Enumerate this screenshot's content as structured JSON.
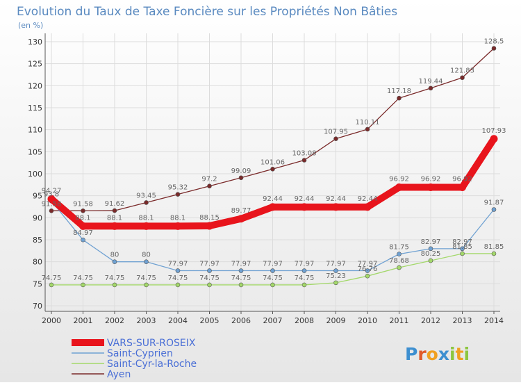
{
  "chart_data": {
    "type": "line",
    "title": "Evolution du Taux de Taxe Foncière sur les Propriétés Non Bâties",
    "ylabel": "(en %)",
    "x": [
      "2000",
      "2001",
      "2002",
      "2003",
      "2004",
      "2005",
      "2006",
      "2007",
      "2008",
      "2009",
      "2010",
      "2011",
      "2012",
      "2013",
      "2014"
    ],
    "y_ticks": [
      "70",
      "75",
      "80",
      "85",
      "90",
      "95",
      "100",
      "105",
      "110",
      "115",
      "120",
      "125",
      "130"
    ],
    "ylim": [
      70,
      130
    ],
    "grid": true,
    "legend_position": "bottom-left",
    "series": [
      {
        "name": "VARS-SUR-ROSEIX",
        "color": "#e8141c",
        "values": [
          94.27,
          88.1,
          88.1,
          88.1,
          88.1,
          88.15,
          89.77,
          92.44,
          92.44,
          92.44,
          92.44,
          96.92,
          96.92,
          96.92,
          107.93
        ],
        "labels": [
          "94.27",
          "88.1",
          "88.1",
          "88.1",
          "88.1",
          "88.15",
          "89.77",
          "92.44",
          "92.44",
          "92.44",
          "92.44",
          "96.92",
          "96.92",
          "96.92",
          "107.93"
        ]
      },
      {
        "name": "Saint-Cyprien",
        "color": "#6fa1d2",
        "values": [
          93.8,
          84.97,
          80,
          80,
          77.97,
          77.97,
          77.97,
          77.97,
          77.97,
          77.97,
          77.97,
          81.75,
          82.97,
          82.97,
          91.87
        ],
        "labels": [
          "93.8",
          "84.97",
          "80",
          "80",
          "77.97",
          "77.97",
          "77.97",
          "77.97",
          "77.97",
          "77.97",
          "77.97",
          "81.75",
          "82.97",
          "82.97",
          "91.87"
        ]
      },
      {
        "name": "Saint-Cyr-la-Roche",
        "color": "#a3d86a",
        "values": [
          74.75,
          74.75,
          74.75,
          74.75,
          74.75,
          74.75,
          74.75,
          74.75,
          74.75,
          75.23,
          76.76,
          78.68,
          80.25,
          81.85,
          81.85
        ],
        "labels": [
          "74.75",
          "74.75",
          "74.75",
          "74.75",
          "74.75",
          "74.75",
          "74.75",
          "74.75",
          "74.75",
          "75.23",
          "76.76",
          "78.68",
          "80.25",
          "81.85",
          "81.85"
        ]
      },
      {
        "name": "Ayen",
        "color": "#7a2a2a",
        "values": [
          91.58,
          91.58,
          91.62,
          93.45,
          95.32,
          97.2,
          99.09,
          101.06,
          103.08,
          107.95,
          110.11,
          117.18,
          119.44,
          121.83,
          128.5
        ],
        "labels": [
          "91.58",
          "91.58",
          "91.62",
          "93.45",
          "95.32",
          "97.2",
          "99.09",
          "101.06",
          "103.08",
          "107.95",
          "110.11",
          "117.18",
          "119.44",
          "121.83",
          "128.5"
        ]
      }
    ]
  },
  "logo": {
    "text": "Proxiti",
    "letters": [
      "P",
      "r",
      "o",
      "x",
      "i",
      "t",
      "i"
    ],
    "colors": [
      "#3d8fd0",
      "#e05a2a",
      "#f0a020",
      "#3d8fd0",
      "#8cc63f",
      "#f0a020",
      "#8cc63f"
    ]
  }
}
